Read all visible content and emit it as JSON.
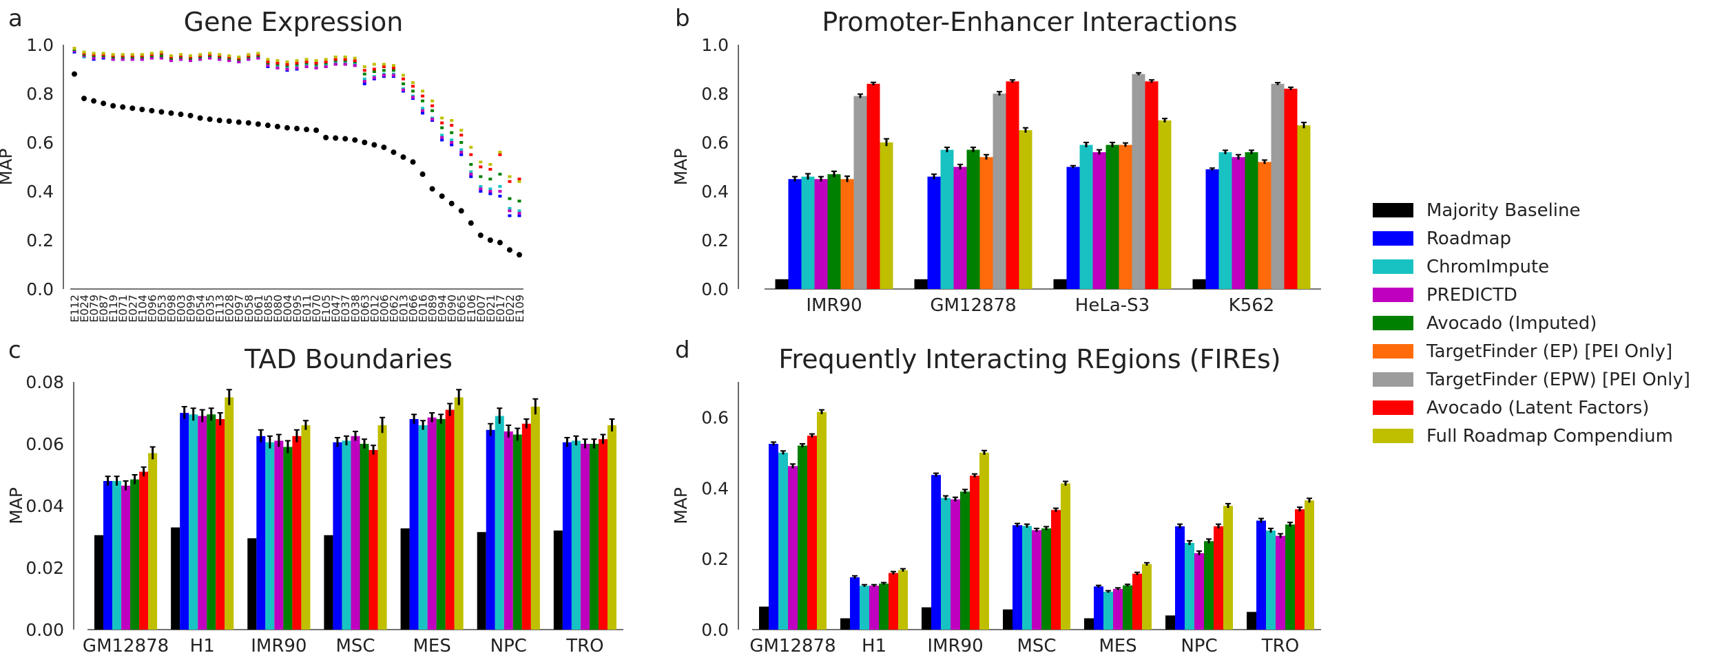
{
  "panel_letters": {
    "a": "a",
    "b": "b",
    "c": "c",
    "d": "d"
  },
  "legend": [
    {
      "label": "Majority Baseline",
      "color": "#000000"
    },
    {
      "label": "Roadmap",
      "color": "#0000ff"
    },
    {
      "label": "ChromImpute",
      "color": "#19c2c2"
    },
    {
      "label": "PREDICTD",
      "color": "#bf00bf"
    },
    {
      "label": "Avocado (Imputed)",
      "color": "#008000"
    },
    {
      "label": "TargetFinder (EP) [PEI Only]",
      "color": "#ff6b0a"
    },
    {
      "label": "TargetFinder (EPW) [PEI Only]",
      "color": "#9c9c9c"
    },
    {
      "label": "Avocado (Latent Factors)",
      "color": "#ff0000"
    },
    {
      "label": "Full Roadmap Compendium",
      "color": "#bfbf00"
    }
  ],
  "chart_data": [
    {
      "panel": "a",
      "type": "scatter",
      "title": "Gene Expression",
      "ylabel": "MAP",
      "ylim": [
        0,
        1.0
      ],
      "yticks": [
        "0.0",
        "0.2",
        "0.4",
        "0.6",
        "0.8",
        "1.0"
      ],
      "categories": [
        "E112",
        "E024",
        "E079",
        "E087",
        "E119",
        "E071",
        "E027",
        "E104",
        "E096",
        "E053",
        "E098",
        "E003",
        "E099",
        "E054",
        "E035",
        "E113",
        "E028",
        "E097",
        "E058",
        "E061",
        "E085",
        "E080",
        "E004",
        "E095",
        "E011",
        "E070",
        "E105",
        "E047",
        "E037",
        "E038",
        "E063",
        "E012",
        "E006",
        "E062",
        "E013",
        "E066",
        "E016",
        "E089",
        "E094",
        "E090",
        "E065",
        "E106",
        "E007",
        "E021",
        "E017",
        "E022",
        "E109"
      ],
      "series": [
        {
          "color": "#000000",
          "values": [
            0.88,
            0.78,
            0.77,
            0.76,
            0.75,
            0.745,
            0.74,
            0.735,
            0.73,
            0.725,
            0.72,
            0.715,
            0.71,
            0.7,
            0.695,
            0.69,
            0.687,
            0.683,
            0.68,
            0.675,
            0.67,
            0.665,
            0.66,
            0.657,
            0.653,
            0.65,
            0.62,
            0.618,
            0.615,
            0.61,
            0.6,
            0.59,
            0.58,
            0.56,
            0.54,
            0.52,
            0.47,
            0.41,
            0.38,
            0.35,
            0.32,
            0.27,
            0.22,
            0.2,
            0.19,
            0.16,
            0.14
          ]
        },
        {
          "color": "#0000ff",
          "values": [
            0.97,
            0.95,
            0.94,
            0.945,
            0.94,
            0.94,
            0.94,
            0.94,
            0.945,
            0.945,
            0.935,
            0.94,
            0.935,
            0.94,
            0.945,
            0.94,
            0.935,
            0.93,
            0.94,
            0.945,
            0.91,
            0.905,
            0.895,
            0.9,
            0.91,
            0.905,
            0.91,
            0.92,
            0.92,
            0.915,
            0.84,
            0.86,
            0.87,
            0.87,
            0.81,
            0.78,
            0.72,
            0.69,
            0.61,
            0.59,
            0.55,
            0.46,
            0.4,
            0.39,
            0.38,
            0.3,
            0.3
          ]
        },
        {
          "color": "#19c2c2",
          "values": [
            0.98,
            0.95,
            0.95,
            0.95,
            0.945,
            0.945,
            0.945,
            0.945,
            0.95,
            0.95,
            0.94,
            0.945,
            0.94,
            0.945,
            0.95,
            0.945,
            0.94,
            0.935,
            0.945,
            0.95,
            0.92,
            0.91,
            0.905,
            0.91,
            0.915,
            0.91,
            0.915,
            0.925,
            0.925,
            0.92,
            0.86,
            0.87,
            0.88,
            0.88,
            0.82,
            0.79,
            0.74,
            0.7,
            0.63,
            0.61,
            0.57,
            0.48,
            0.42,
            0.41,
            0.42,
            0.33,
            0.32
          ]
        },
        {
          "color": "#bf00bf",
          "values": [
            0.975,
            0.955,
            0.945,
            0.95,
            0.94,
            0.94,
            0.94,
            0.94,
            0.945,
            0.945,
            0.935,
            0.94,
            0.935,
            0.94,
            0.945,
            0.94,
            0.935,
            0.93,
            0.94,
            0.945,
            0.915,
            0.905,
            0.9,
            0.905,
            0.91,
            0.905,
            0.91,
            0.92,
            0.92,
            0.915,
            0.85,
            0.865,
            0.875,
            0.875,
            0.815,
            0.785,
            0.73,
            0.695,
            0.62,
            0.6,
            0.56,
            0.47,
            0.41,
            0.4,
            0.4,
            0.32,
            0.31
          ]
        },
        {
          "color": "#008000",
          "values": [
            0.98,
            0.96,
            0.955,
            0.955,
            0.95,
            0.95,
            0.95,
            0.95,
            0.955,
            0.955,
            0.945,
            0.95,
            0.945,
            0.95,
            0.955,
            0.95,
            0.945,
            0.94,
            0.95,
            0.955,
            0.925,
            0.92,
            0.915,
            0.92,
            0.925,
            0.92,
            0.925,
            0.935,
            0.935,
            0.93,
            0.88,
            0.89,
            0.895,
            0.895,
            0.84,
            0.81,
            0.77,
            0.73,
            0.66,
            0.64,
            0.6,
            0.51,
            0.46,
            0.45,
            0.47,
            0.37,
            0.36
          ]
        },
        {
          "color": "#ff0000",
          "values": [
            0.985,
            0.965,
            0.96,
            0.96,
            0.955,
            0.955,
            0.955,
            0.955,
            0.96,
            0.965,
            0.95,
            0.955,
            0.95,
            0.955,
            0.96,
            0.955,
            0.95,
            0.945,
            0.955,
            0.96,
            0.93,
            0.925,
            0.92,
            0.925,
            0.93,
            0.925,
            0.93,
            0.94,
            0.94,
            0.935,
            0.895,
            0.9,
            0.91,
            0.905,
            0.86,
            0.83,
            0.79,
            0.75,
            0.68,
            0.67,
            0.63,
            0.55,
            0.5,
            0.49,
            0.55,
            0.44,
            0.45
          ]
        },
        {
          "color": "#bfbf00",
          "values": [
            0.985,
            0.97,
            0.965,
            0.965,
            0.96,
            0.96,
            0.96,
            0.96,
            0.965,
            0.97,
            0.955,
            0.96,
            0.955,
            0.96,
            0.965,
            0.96,
            0.955,
            0.95,
            0.96,
            0.965,
            0.94,
            0.935,
            0.93,
            0.935,
            0.94,
            0.935,
            0.94,
            0.95,
            0.95,
            0.945,
            0.91,
            0.92,
            0.92,
            0.915,
            0.875,
            0.845,
            0.81,
            0.77,
            0.7,
            0.69,
            0.65,
            0.58,
            0.52,
            0.51,
            0.56,
            0.46,
            0.44
          ]
        }
      ]
    },
    {
      "panel": "b",
      "type": "bar",
      "title": "Promoter-Enhancer Interactions",
      "ylabel": "MAP",
      "ylim": [
        0,
        1.0
      ],
      "yticks": [
        "0.0",
        "0.2",
        "0.4",
        "0.6",
        "0.8",
        "1.0"
      ],
      "categories": [
        "IMR90",
        "GM12878",
        "HeLa-S3",
        "K562"
      ],
      "series": [
        {
          "name": "Majority Baseline",
          "values": [
            0.04,
            0.04,
            0.04,
            0.04
          ],
          "err": [
            0,
            0,
            0,
            0
          ]
        },
        {
          "name": "Roadmap",
          "values": [
            0.45,
            0.46,
            0.5,
            0.49
          ],
          "err": [
            0.01,
            0.01,
            0.005,
            0.005
          ]
        },
        {
          "name": "ChromImpute",
          "values": [
            0.46,
            0.57,
            0.59,
            0.56
          ],
          "err": [
            0.012,
            0.01,
            0.01,
            0.008
          ]
        },
        {
          "name": "PREDICTD",
          "values": [
            0.45,
            0.5,
            0.56,
            0.54
          ],
          "err": [
            0.01,
            0.01,
            0.01,
            0.01
          ]
        },
        {
          "name": "Avocado (Imputed)",
          "values": [
            0.47,
            0.57,
            0.59,
            0.56
          ],
          "err": [
            0.012,
            0.01,
            0.01,
            0.008
          ]
        },
        {
          "name": "TargetFinder (EP) [PEI Only]",
          "values": [
            0.45,
            0.54,
            0.59,
            0.52
          ],
          "err": [
            0.012,
            0.01,
            0.008,
            0.008
          ]
        },
        {
          "name": "TargetFinder (EPW) [PEI Only]",
          "values": [
            0.79,
            0.8,
            0.88,
            0.84
          ],
          "err": [
            0.008,
            0.008,
            0.005,
            0.005
          ]
        },
        {
          "name": "Avocado (Latent Factors)",
          "values": [
            0.84,
            0.85,
            0.85,
            0.82
          ],
          "err": [
            0.006,
            0.006,
            0.006,
            0.006
          ]
        },
        {
          "name": "Full Roadmap Compendium",
          "values": [
            0.6,
            0.65,
            0.69,
            0.67
          ],
          "err": [
            0.015,
            0.01,
            0.008,
            0.012
          ]
        }
      ]
    },
    {
      "panel": "c",
      "type": "bar",
      "title": "TAD Boundaries",
      "ylabel": "MAP",
      "ylim": [
        0,
        0.08
      ],
      "yticks": [
        "0.00",
        "0.02",
        "0.04",
        "0.06",
        "0.08"
      ],
      "categories": [
        "GM12878",
        "H1",
        "IMR90",
        "MSC",
        "MES",
        "NPC",
        "TRO"
      ],
      "series": [
        {
          "name": "Majority Baseline",
          "values": [
            0.0305,
            0.033,
            0.0295,
            0.0305,
            0.0327,
            0.0315,
            0.032
          ],
          "err": [
            0,
            0,
            0,
            0,
            0,
            0,
            0
          ]
        },
        {
          "name": "Roadmap",
          "values": [
            0.048,
            0.07,
            0.0625,
            0.0605,
            0.068,
            0.0645,
            0.0605
          ],
          "err": [
            0.0015,
            0.002,
            0.002,
            0.0015,
            0.0015,
            0.002,
            0.0015
          ]
        },
        {
          "name": "ChromImpute",
          "values": [
            0.048,
            0.0695,
            0.0605,
            0.061,
            0.066,
            0.069,
            0.061
          ],
          "err": [
            0.0015,
            0.002,
            0.002,
            0.0015,
            0.0015,
            0.0025,
            0.0015
          ]
        },
        {
          "name": "PREDICTD",
          "values": [
            0.0465,
            0.069,
            0.061,
            0.0625,
            0.0685,
            0.064,
            0.06
          ],
          "err": [
            0.0015,
            0.002,
            0.002,
            0.0015,
            0.0015,
            0.002,
            0.0015
          ]
        },
        {
          "name": "Avocado (Imputed)",
          "values": [
            0.0485,
            0.0695,
            0.059,
            0.06,
            0.068,
            0.063,
            0.06
          ],
          "err": [
            0.0015,
            0.002,
            0.002,
            0.0015,
            0.0015,
            0.002,
            0.0015
          ]
        },
        {
          "name": "Avocado (Latent Factors)",
          "values": [
            0.051,
            0.068,
            0.0625,
            0.058,
            0.071,
            0.0665,
            0.0615
          ],
          "err": [
            0.0015,
            0.002,
            0.002,
            0.0015,
            0.002,
            0.0015,
            0.0015
          ]
        },
        {
          "name": "Full Roadmap Compendium",
          "values": [
            0.057,
            0.075,
            0.066,
            0.066,
            0.075,
            0.072,
            0.066
          ],
          "err": [
            0.002,
            0.0025,
            0.0015,
            0.0025,
            0.0025,
            0.0025,
            0.002
          ]
        }
      ]
    },
    {
      "panel": "d",
      "type": "bar",
      "title": "Frequently Interacting REgions (FIREs)",
      "ylabel": "MAP",
      "ylim": [
        0,
        0.7
      ],
      "yticks": [
        "0.0",
        "0.2",
        "0.4",
        "0.6"
      ],
      "categories": [
        "GM12878",
        "H1",
        "IMR90",
        "MSC",
        "MES",
        "NPC",
        "TRO"
      ],
      "series": [
        {
          "name": "Majority Baseline",
          "values": [
            0.065,
            0.032,
            0.063,
            0.057,
            0.032,
            0.04,
            0.05
          ],
          "err": [
            0,
            0,
            0,
            0,
            0,
            0,
            0
          ]
        },
        {
          "name": "Roadmap",
          "values": [
            0.525,
            0.148,
            0.437,
            0.295,
            0.122,
            0.292,
            0.308
          ],
          "err": [
            0.005,
            0.004,
            0.005,
            0.005,
            0.003,
            0.006,
            0.006
          ]
        },
        {
          "name": "ChromImpute",
          "values": [
            0.5,
            0.124,
            0.372,
            0.293,
            0.107,
            0.245,
            0.28
          ],
          "err": [
            0.005,
            0.003,
            0.006,
            0.005,
            0.003,
            0.006,
            0.006
          ]
        },
        {
          "name": "PREDICTD",
          "values": [
            0.462,
            0.124,
            0.368,
            0.281,
            0.115,
            0.216,
            0.265
          ],
          "err": [
            0.006,
            0.003,
            0.006,
            0.005,
            0.003,
            0.006,
            0.006
          ]
        },
        {
          "name": "Avocado (Imputed)",
          "values": [
            0.52,
            0.13,
            0.39,
            0.286,
            0.125,
            0.25,
            0.297
          ],
          "err": [
            0.005,
            0.003,
            0.006,
            0.005,
            0.003,
            0.006,
            0.006
          ]
        },
        {
          "name": "Avocado (Latent Factors)",
          "values": [
            0.548,
            0.16,
            0.435,
            0.338,
            0.158,
            0.292,
            0.34
          ],
          "err": [
            0.005,
            0.004,
            0.005,
            0.005,
            0.004,
            0.006,
            0.006
          ]
        },
        {
          "name": "Full Roadmap Compendium",
          "values": [
            0.615,
            0.168,
            0.5,
            0.413,
            0.185,
            0.35,
            0.365
          ],
          "err": [
            0.006,
            0.004,
            0.006,
            0.006,
            0.004,
            0.006,
            0.006
          ]
        }
      ]
    }
  ]
}
